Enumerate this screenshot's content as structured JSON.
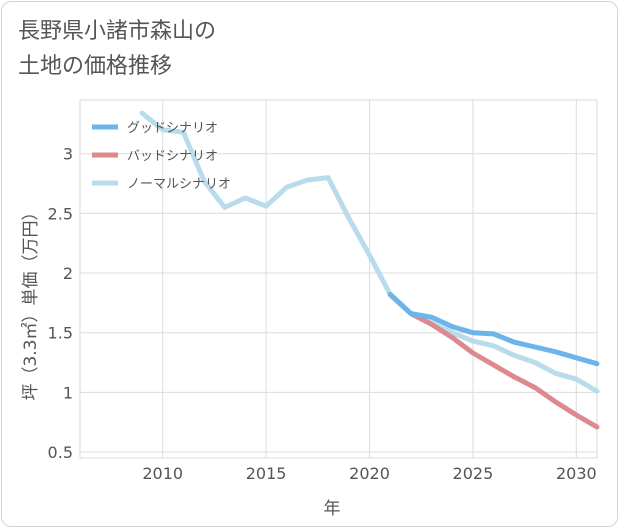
{
  "chart_data": {
    "type": "line",
    "title": "長野県小諸市森山の\n土地の価格推移",
    "xlabel": "年",
    "ylabel": "坪（3.3㎡）単価（万円）",
    "xlim": [
      2006,
      2031
    ],
    "ylim": [
      0.45,
      3.45
    ],
    "x_ticks": [
      2010,
      2015,
      2020,
      2025,
      2030
    ],
    "y_ticks": [
      0.5,
      1,
      1.5,
      2,
      2.5,
      3
    ],
    "x_tick_labels": [
      "2010",
      "2015",
      "2020",
      "2025",
      "2030"
    ],
    "y_tick_labels": [
      "0.5",
      "1",
      "1.5",
      "2",
      "2.5",
      "3"
    ],
    "grid": true,
    "legend_position": "top-left",
    "series": [
      {
        "name": "グッドシナリオ",
        "color": "#6cb5ea",
        "x": [
          2021,
          2022,
          2023,
          2024,
          2025,
          2026,
          2027,
          2028,
          2029,
          2030,
          2031
        ],
        "y": [
          1.82,
          1.66,
          1.63,
          1.55,
          1.5,
          1.49,
          1.42,
          1.38,
          1.34,
          1.29,
          1.24
        ]
      },
      {
        "name": "バッドシナリオ",
        "color": "#dd8a8f",
        "x": [
          2021,
          2022,
          2023,
          2024,
          2025,
          2026,
          2027,
          2028,
          2029,
          2030,
          2031
        ],
        "y": [
          1.82,
          1.66,
          1.57,
          1.46,
          1.33,
          1.23,
          1.13,
          1.04,
          0.92,
          0.81,
          0.71
        ]
      },
      {
        "name": "ノーマルシナリオ",
        "color": "#b9dcec",
        "x": [
          2009,
          2010,
          2011,
          2012,
          2013,
          2014,
          2015,
          2016,
          2017,
          2018,
          2019,
          2020,
          2021,
          2022,
          2023,
          2024,
          2025,
          2026,
          2027,
          2028,
          2029,
          2030,
          2031
        ],
        "y": [
          3.34,
          3.2,
          3.18,
          2.77,
          2.55,
          2.63,
          2.56,
          2.72,
          2.78,
          2.8,
          2.46,
          2.15,
          1.82,
          1.66,
          1.58,
          1.5,
          1.43,
          1.39,
          1.31,
          1.25,
          1.16,
          1.11,
          1.01
        ]
      }
    ]
  }
}
